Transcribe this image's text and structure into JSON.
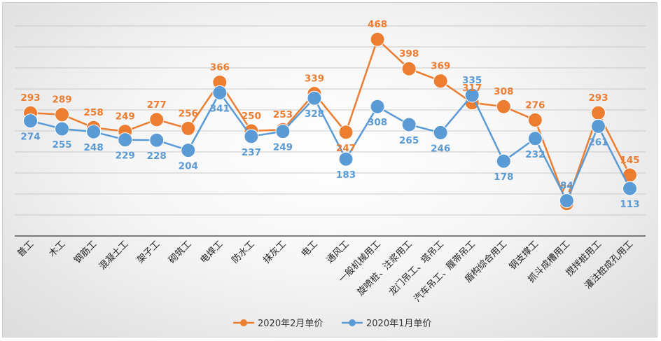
{
  "chart_data": {
    "type": "line",
    "categories": [
      "普工",
      "木工",
      "钢筋工",
      "混凝土工",
      "架子工",
      "砌筑工",
      "电焊工",
      "防水工",
      "抹灰工",
      "电工",
      "通风工",
      "一般机械用工",
      "旋喷桩、注浆用工",
      "龙门吊工、塔吊工",
      "汽车吊工、履带吊工",
      "盾构综合用工",
      "钢支撑工",
      "抓斗成槽用工",
      "搅拌桩用工",
      "灌注桩成孔用工"
    ],
    "series": [
      {
        "name": "2020年2月单价",
        "color": "#ED7D31",
        "values": [
          293,
          289,
          258,
          249,
          277,
          256,
          366,
          250,
          253,
          339,
          247,
          468,
          398,
          369,
          317,
          308,
          276,
          77,
          293,
          145
        ]
      },
      {
        "name": "2020年1月单价",
        "color": "#5B9BD5",
        "values": [
          274,
          255,
          248,
          229,
          228,
          204,
          341,
          237,
          249,
          328,
          183,
          308,
          265,
          246,
          335,
          178,
          232,
          84,
          261,
          113
        ]
      }
    ],
    "ylim": [
      0,
      500
    ],
    "grid": true,
    "legend_position": "bottom"
  }
}
